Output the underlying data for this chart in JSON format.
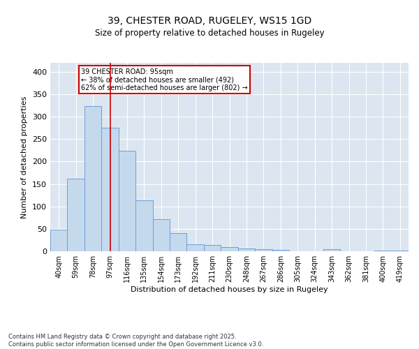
{
  "title1": "39, CHESTER ROAD, RUGELEY, WS15 1GD",
  "title2": "Size of property relative to detached houses in Rugeley",
  "xlabel": "Distribution of detached houses by size in Rugeley",
  "ylabel": "Number of detached properties",
  "categories": [
    "40sqm",
    "59sqm",
    "78sqm",
    "97sqm",
    "116sqm",
    "135sqm",
    "154sqm",
    "173sqm",
    "192sqm",
    "211sqm",
    "230sqm",
    "248sqm",
    "267sqm",
    "286sqm",
    "305sqm",
    "324sqm",
    "343sqm",
    "362sqm",
    "381sqm",
    "400sqm",
    "419sqm"
  ],
  "values": [
    48,
    162,
    323,
    275,
    224,
    113,
    72,
    40,
    15,
    14,
    9,
    7,
    4,
    3,
    0,
    0,
    4,
    0,
    0,
    2,
    2
  ],
  "bar_color": "#c5d9ed",
  "bar_edge_color": "#6a9fd8",
  "background_color": "#dce6f1",
  "grid_color": "#ffffff",
  "annotation_text": "39 CHESTER ROAD: 95sqm\n← 38% of detached houses are smaller (492)\n62% of semi-detached houses are larger (802) →",
  "annotation_box_color": "#ffffff",
  "annotation_box_edge": "#cc0000",
  "vline_x": 3.0,
  "vline_color": "#cc0000",
  "ylim": [
    0,
    420
  ],
  "yticks": [
    0,
    50,
    100,
    150,
    200,
    250,
    300,
    350,
    400
  ],
  "footer": "Contains HM Land Registry data © Crown copyright and database right 2025.\nContains public sector information licensed under the Open Government Licence v3.0.",
  "fig_width": 6.0,
  "fig_height": 5.0,
  "title1_fontsize": 10,
  "title2_fontsize": 8.5,
  "axis_fontsize": 8,
  "tick_fontsize": 7,
  "annotation_fontsize": 7,
  "footer_fontsize": 6
}
